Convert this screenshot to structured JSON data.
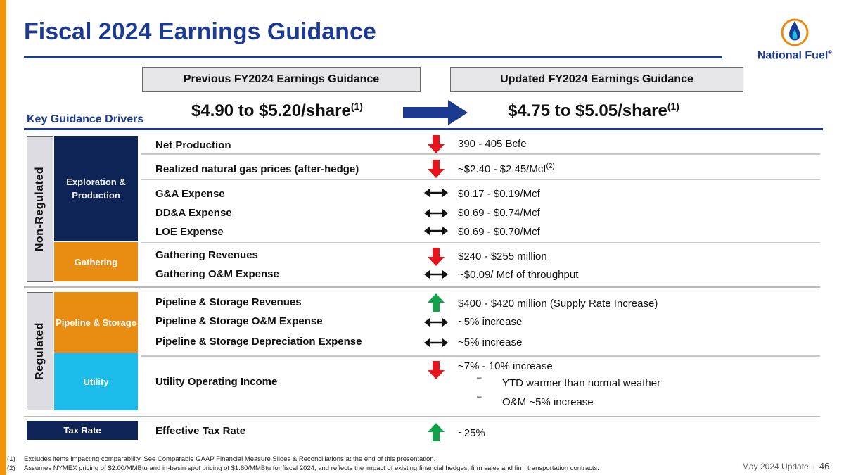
{
  "title": "Fiscal 2024 Earnings Guidance",
  "logo": {
    "name": "National Fuel",
    "mark": "®",
    "icon": "flame-icon"
  },
  "previous": {
    "label": "Previous FY2024 Earnings Guidance",
    "value": "$4.90 to $5.20/share",
    "note": "(1)"
  },
  "updated": {
    "label": "Updated FY2024 Earnings Guidance",
    "value": "$4.75 to $5.05/share",
    "note": "(1)"
  },
  "key_drivers_label": "Key Guidance Drivers",
  "groups": {
    "non_regulated": "Non-Regulated",
    "regulated": "Regulated"
  },
  "segments": {
    "exploration_production": "Exploration & Production",
    "gathering": "Gathering",
    "pipeline_storage": "Pipeline & Storage",
    "utility": "Utility",
    "tax_rate": "Tax Rate"
  },
  "colors": {
    "navy": "#0e2457",
    "orange": "#e98c12",
    "cyan": "#1cbcea",
    "title_blue": "#1c3a8f",
    "down": "#e8141b",
    "up": "#12a24a"
  },
  "drivers": [
    {
      "label": "Net Production",
      "value": "390 - 405 Bcfe",
      "trend": "down"
    },
    {
      "label": "Realized natural gas prices (after-hedge)",
      "value": "~$2.40 - $2.45/Mcf",
      "value_note": "(2)",
      "trend": "down"
    },
    {
      "label": "G&A Expense",
      "value": "$0.17 - $0.19/Mcf",
      "trend": "unchanged"
    },
    {
      "label": "DD&A Expense",
      "value": "$0.69 - $0.74/Mcf",
      "trend": "unchanged"
    },
    {
      "label": "LOE Expense",
      "value": "$0.69 - $0.70/Mcf",
      "trend": "unchanged"
    },
    {
      "label": "Gathering Revenues",
      "value": "$240 - $255 million",
      "trend": "down"
    },
    {
      "label": "Gathering O&M Expense",
      "value": "~$0.09/ Mcf of throughput",
      "trend": "unchanged"
    },
    {
      "label": "Pipeline & Storage Revenues",
      "value": "$400 - $420 million (Supply Rate Increase)",
      "trend": "up"
    },
    {
      "label": "Pipeline & Storage O&M Expense",
      "value": "~5% increase",
      "trend": "unchanged"
    },
    {
      "label": "Pipeline & Storage Depreciation Expense",
      "value": "~5% increase",
      "trend": "unchanged"
    },
    {
      "label": "Utility Operating Income",
      "value": "~7% - 10% increase",
      "trend": "down",
      "bullets": [
        "YTD warmer than normal weather",
        "O&M ~5% increase"
      ],
      "bullet_mark": "–"
    },
    {
      "label": "Effective Tax Rate",
      "value": "~25%",
      "trend": "up"
    }
  ],
  "footnotes": [
    {
      "num": "(1)",
      "text": "Excludes items impacting comparability.  See Comparable GAAP Financial Measure Slides & Reconciliations at the end of this presentation."
    },
    {
      "num": "(2)",
      "text": "Assumes NYMEX pricing of $2.00/MMBtu and in-basin spot pricing of $1.60/MMBtu for fiscal 2024, and reflects the impact of existing financial hedges, firm sales and firm transportation contracts."
    }
  ],
  "footer": {
    "deck": "May 2024 Update",
    "page": "46"
  }
}
